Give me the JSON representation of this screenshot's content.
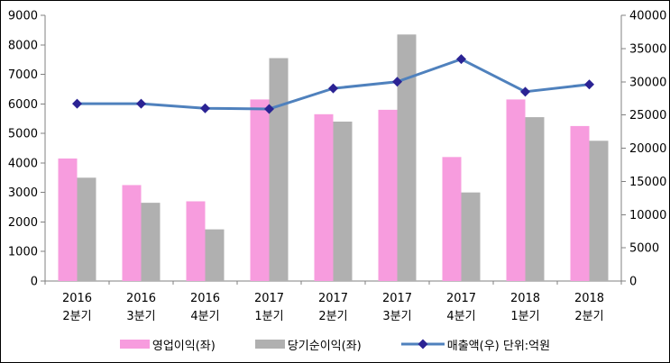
{
  "figure": {
    "background": "#FFFFFF",
    "border_color": "#000000",
    "title": ""
  },
  "chart_data": {
    "type": "bar",
    "subtype": "grouped-bar-with-line-combo",
    "title": "",
    "xlabel": "",
    "ylabel_left": "",
    "ylabel_right": "",
    "grid": false,
    "legend_position": "bottom",
    "categories": [
      "2016 2분기",
      "2016 3분기",
      "2016 4분기",
      "2017 1분기",
      "2017 2분기",
      "2017 3분기",
      "2017 4분기",
      "2018 1분기",
      "2018 2분기"
    ],
    "series": [
      {
        "name": "영업이익(좌)",
        "kind": "bar",
        "axis": "left",
        "color": "#F79CDE",
        "values": [
          4150,
          3250,
          2700,
          6150,
          5650,
          5800,
          4200,
          6150,
          5250
        ]
      },
      {
        "name": "당기순이익(좌)",
        "kind": "bar",
        "axis": "left",
        "color": "#B0B0B0",
        "values": [
          3500,
          2650,
          1750,
          7550,
          5400,
          8350,
          3000,
          5550,
          4750
        ]
      },
      {
        "name": "매출액(우) 단위:억원",
        "kind": "line",
        "axis": "right",
        "color": "#4F81BD",
        "marker": "diamond",
        "marker_color": "#2B2394",
        "values": [
          26700,
          26700,
          26000,
          25900,
          29000,
          30000,
          33400,
          28500,
          29600
        ]
      }
    ],
    "left_axis": {
      "min": 0,
      "max": 9000,
      "step": 1000,
      "ticks": [
        "0",
        "1000",
        "2000",
        "3000",
        "4000",
        "5000",
        "6000",
        "7000",
        "8000",
        "9000"
      ]
    },
    "right_axis": {
      "min": 0,
      "max": 40000,
      "step": 5000,
      "ticks": [
        "0",
        "5000",
        "10000",
        "15000",
        "20000",
        "25000",
        "30000",
        "35000",
        "40000"
      ]
    },
    "axis_color": "#808080",
    "text_color": "#000000",
    "tick_font_size": 13
  }
}
